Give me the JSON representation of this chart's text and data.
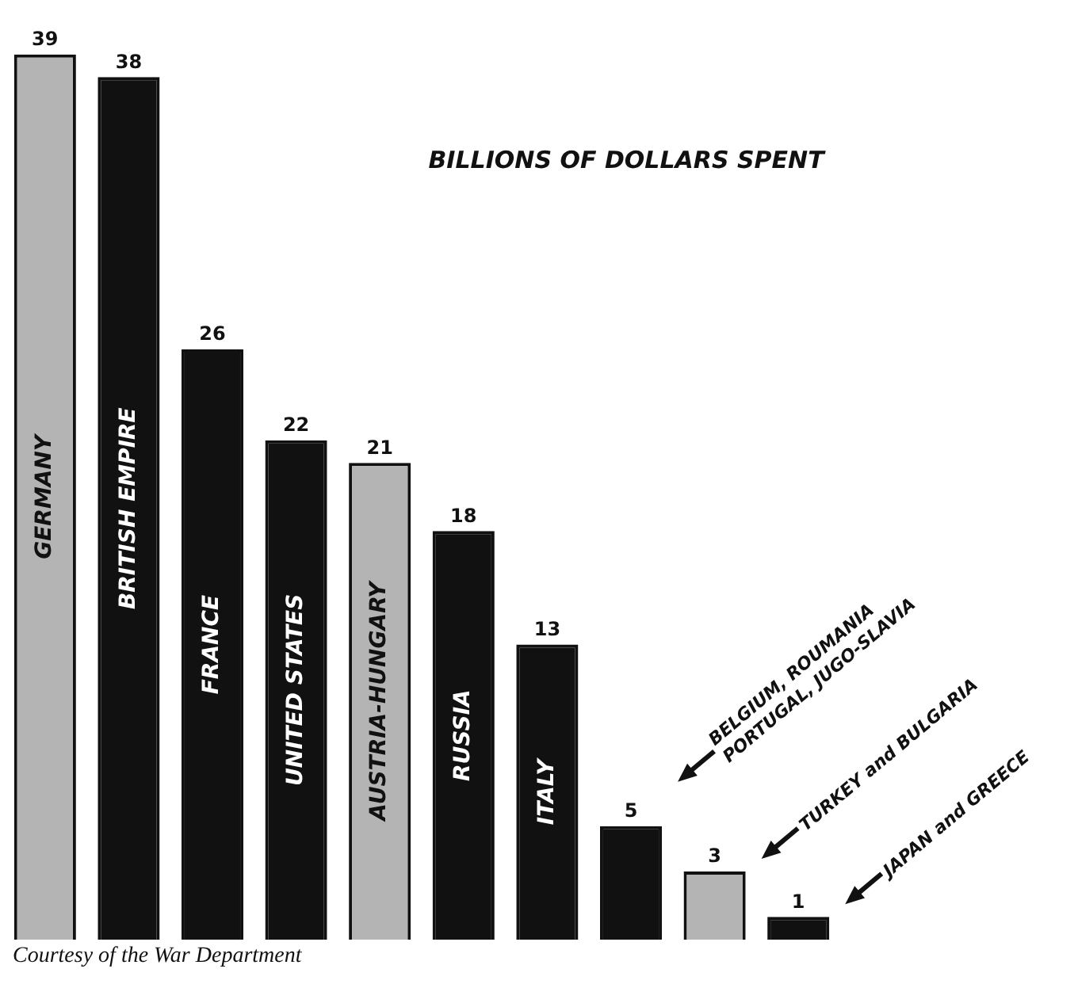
{
  "chart_data": {
    "type": "bar",
    "title": "BILLIONS OF DOLLARS SPENT",
    "categories": [
      "GERMANY",
      "BRITISH EMPIRE",
      "FRANCE",
      "UNITED STATES",
      "AUSTRIA-HUNGARY",
      "RUSSIA",
      "ITALY",
      null,
      null,
      null
    ],
    "values": [
      39,
      38,
      26,
      22,
      21,
      18,
      13,
      5,
      3,
      1
    ],
    "colors": [
      "#b4b4b4",
      "#111111",
      "#111111",
      "#111111",
      "#b4b4b4",
      "#111111",
      "#111111",
      "#111111",
      "#b4b4b4",
      "#111111"
    ],
    "data_labels": true,
    "grid": false,
    "legend": false,
    "tick_labels": false,
    "annotations": [
      "BELGIUM, ROUMANIA PORTUGAL, JUGO-SLAVIA",
      "TURKEY and BULGARIA",
      "JAPAN and GREECE",
      "Courtesy of the War Department"
    ]
  }
}
